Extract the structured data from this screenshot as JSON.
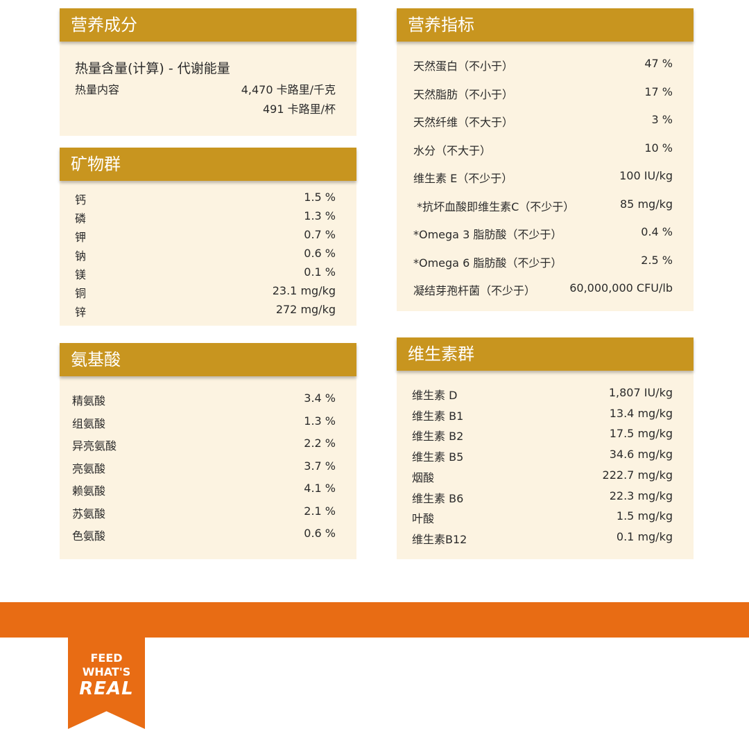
{
  "colors": {
    "header": "#c8951f",
    "panel": "#fcf3e1",
    "orange": "#e86c14"
  },
  "calories": {
    "title": "营养成分",
    "subtitle": "热量含量(计算) - 代谢能量",
    "label": "热量内容",
    "value1": "4,470 卡路里/千克",
    "value2": "491 卡路里/杯"
  },
  "minerals": {
    "title": "矿物群",
    "items": [
      [
        "钙",
        "1.5 %"
      ],
      [
        "磷",
        "1.3 %"
      ],
      [
        "钾",
        "0.7 %"
      ],
      [
        "钠",
        "0.6 %"
      ],
      [
        "镁",
        "0.1 %"
      ],
      [
        "铜",
        "23.1 mg/kg"
      ],
      [
        "锌",
        "272 mg/kg"
      ]
    ]
  },
  "amino": {
    "title": "氨基酸",
    "items": [
      [
        "精氨酸",
        "3.4 %"
      ],
      [
        "组氨酸",
        "1.3 %"
      ],
      [
        "异亮氨酸",
        "2.2 %"
      ],
      [
        "亮氨酸",
        "3.7 %"
      ],
      [
        "赖氨酸",
        "4.1 %"
      ],
      [
        "苏氨酸",
        "2.1 %"
      ],
      [
        "色氨酸",
        "0.6 %"
      ]
    ]
  },
  "indices": {
    "title": "营养指标",
    "items": [
      [
        "天然蛋白（不小于）",
        "47 %"
      ],
      [
        "天然脂肪（不小于）",
        "17 %"
      ],
      [
        "天然纤维（不大于）",
        "3 %"
      ],
      [
        "水分（不大于）",
        "10 %"
      ],
      [
        "维生素 E（不少于）",
        "100 IU/kg"
      ],
      [
        " *抗坏血酸即维生素C（不少于）",
        "85 mg/kg"
      ],
      [
        "*Omega 3 脂肪酸（不少于）",
        "0.4 %"
      ],
      [
        "*Omega 6 脂肪酸（不少于）",
        "2.5 %"
      ],
      [
        "凝结芽孢杆菌（不少于）",
        "60,000,000 CFU/lb"
      ]
    ]
  },
  "vitamins": {
    "title": "维生素群",
    "items": [
      [
        "维生素 D",
        "1,807 IU/kg"
      ],
      [
        "维生素 B1",
        "13.4 mg/kg"
      ],
      [
        "维生素 B2",
        "17.5 mg/kg"
      ],
      [
        "维生素 B5",
        "34.6 mg/kg"
      ],
      [
        "烟酸",
        "222.7 mg/kg"
      ],
      [
        "维生素 B6",
        "22.3 mg/kg"
      ],
      [
        "叶酸",
        "1.5 mg/kg"
      ],
      [
        "维生素B12",
        "0.1 mg/kg"
      ]
    ]
  },
  "footer": {
    "logo_text": "FEED WHAT'S REAL"
  }
}
